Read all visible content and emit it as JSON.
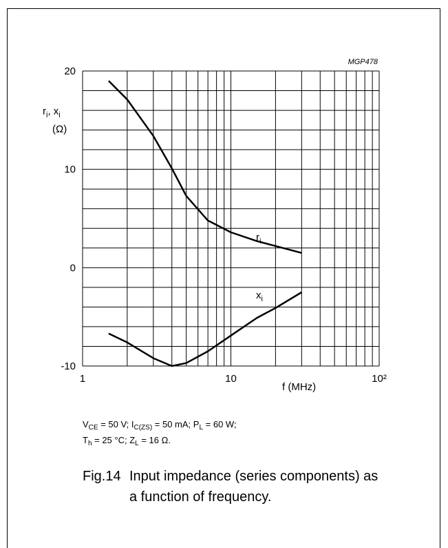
{
  "chart_data": {
    "type": "line",
    "code": "MGP478",
    "y_label_parts": [
      "r",
      "i",
      ", x",
      "i"
    ],
    "y_unit": "(Ω)",
    "x_label": "f (MHz)",
    "x_log": true,
    "grid": true,
    "color": "#000000",
    "xlim": [
      1,
      100
    ],
    "xticks": [
      1,
      10,
      {
        "value": 100,
        "label": "10²"
      }
    ],
    "xminor": [
      2,
      3,
      4,
      5,
      6,
      7,
      8,
      9,
      20,
      30,
      40,
      50,
      60,
      70,
      80,
      90
    ],
    "ylim": [
      -10,
      20
    ],
    "yticks": [
      -10,
      0,
      10,
      20
    ],
    "yminor": [
      -8,
      -6,
      -4,
      -2,
      2,
      4,
      6,
      8,
      12,
      14,
      16,
      18
    ],
    "x": [
      1.5,
      2,
      3,
      4,
      5,
      7,
      10,
      15,
      20,
      30
    ],
    "series": [
      {
        "label_parts": [
          "r",
          "i"
        ],
        "values": [
          19.0,
          17.1,
          13.4,
          10.1,
          7.3,
          4.8,
          3.6,
          2.7,
          2.2,
          1.5
        ]
      },
      {
        "label_parts": [
          "x",
          "i"
        ],
        "values": [
          -6.7,
          -7.6,
          -9.2,
          -10.0,
          -9.7,
          -8.5,
          -6.9,
          -5.1,
          -4.1,
          -2.5
        ]
      }
    ],
    "conditions": {
      "line1_parts": [
        "V",
        "CE",
        " = 50 V; I",
        "C(ZS)",
        " = 50 mA; P",
        "L",
        " = 60 W;"
      ],
      "line2_parts": [
        "T",
        "h",
        " = 25 °C; Z",
        "L",
        " = 16 Ω."
      ]
    },
    "caption": {
      "number": "Fig.14",
      "line1": "Input impedance (series components) as",
      "line2": "a function of frequency."
    }
  }
}
